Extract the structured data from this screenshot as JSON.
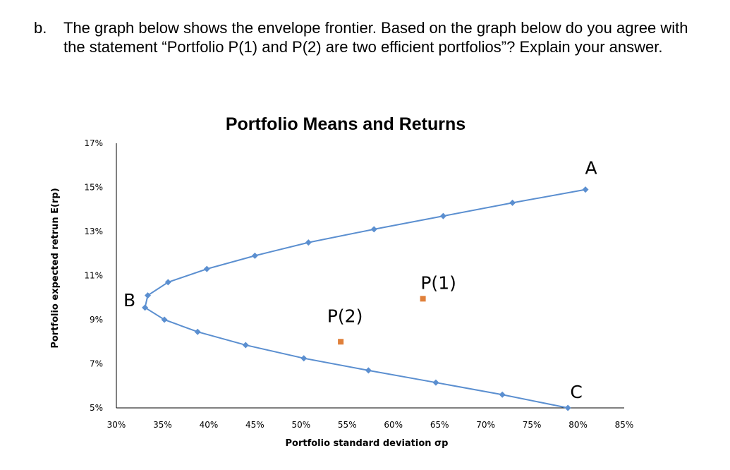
{
  "question": {
    "label": "b.",
    "text": "The graph below shows the envelope frontier. Based on the graph below do you agree with the statement “Portfolio P(1) and P(2) are two efficient portfolios”? Explain your answer."
  },
  "chart_data": {
    "type": "scatter",
    "title": "Portfolio Means and Returns",
    "xlabel": "Portfolio standard deviation σp",
    "ylabel": "Portfolio expected retrun E(rp)",
    "xlim": [
      30,
      85
    ],
    "ylim": [
      5,
      17
    ],
    "x_ticks": [
      "30%",
      "35%",
      "40%",
      "45%",
      "50%",
      "55%",
      "60%",
      "65%",
      "70%",
      "75%",
      "80%",
      "85%"
    ],
    "y_ticks": [
      "5%",
      "7%",
      "9%",
      "11%",
      "13%",
      "15%",
      "17%"
    ],
    "grid": false,
    "series": [
      {
        "points": [
          {
            "x": 80.8,
            "y": 14.9
          },
          {
            "x": 72.9,
            "y": 14.3
          },
          {
            "x": 65.4,
            "y": 13.7
          },
          {
            "x": 57.9,
            "y": 13.1
          },
          {
            "x": 50.8,
            "y": 12.5
          },
          {
            "x": 45.0,
            "y": 11.9
          },
          {
            "x": 39.8,
            "y": 11.3
          },
          {
            "x": 35.6,
            "y": 10.7
          },
          {
            "x": 33.4,
            "y": 10.1
          },
          {
            "x": 33.1,
            "y": 9.55
          },
          {
            "x": 35.2,
            "y": 9.0
          },
          {
            "x": 38.8,
            "y": 8.45
          },
          {
            "x": 44.0,
            "y": 7.85
          },
          {
            "x": 50.3,
            "y": 7.25
          },
          {
            "x": 57.3,
            "y": 6.7
          },
          {
            "x": 64.6,
            "y": 6.15
          },
          {
            "x": 71.8,
            "y": 5.6
          },
          {
            "x": 78.9,
            "y": 5.0
          }
        ],
        "color": "#5b8fd0"
      },
      {
        "points": [
          {
            "x": 63.2,
            "y": 9.95
          },
          {
            "x": 54.3,
            "y": 8.0
          }
        ],
        "color": "#e0803a"
      }
    ],
    "annotations": [
      {
        "text": "A",
        "x": 80.8,
        "y": 14.9
      },
      {
        "text": "B",
        "x": 33.1,
        "y": 9.55
      },
      {
        "text": "C",
        "x": 78.9,
        "y": 5.0
      },
      {
        "text": "P(1)",
        "x": 63.2,
        "y": 9.95
      },
      {
        "text": "P(2)",
        "x": 54.3,
        "y": 8.0
      }
    ]
  }
}
